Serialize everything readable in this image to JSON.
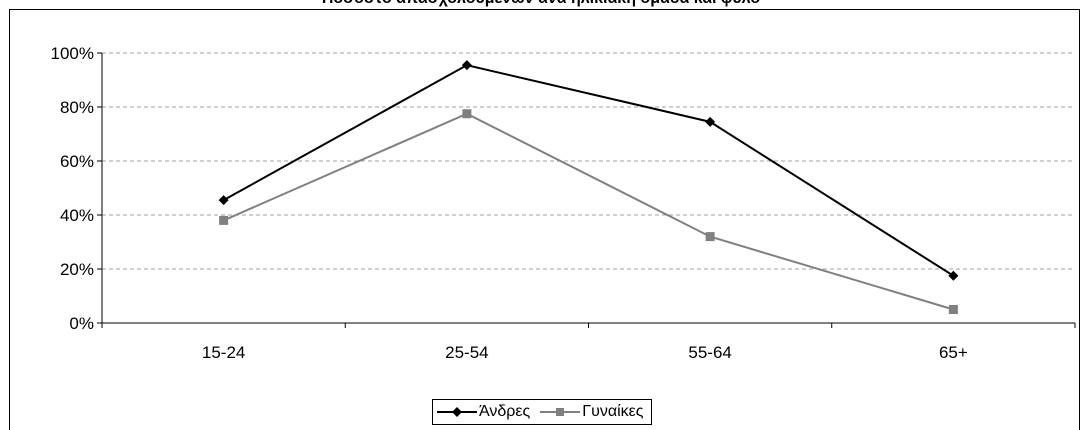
{
  "chart_data": {
    "type": "line",
    "title": "Ποσοστό απασχολούμενων ανά ηλικιακή ομάδα και φύλο",
    "categories": [
      "15-24",
      "25-54",
      "55-64",
      "65+"
    ],
    "series": [
      {
        "name": "Άνδρες",
        "values": [
          45.5,
          95.5,
          74.5,
          17.5
        ],
        "color": "#000000",
        "marker": "diamond"
      },
      {
        "name": "Γυναίκες",
        "values": [
          38.0,
          77.5,
          32.0,
          5.0
        ],
        "color": "#808080",
        "marker": "square"
      }
    ],
    "yticks": [
      "0%",
      "20%",
      "40%",
      "60%",
      "80%",
      "100%"
    ],
    "ylim": [
      0,
      100
    ],
    "grid": true,
    "legend_position": "bottom"
  }
}
